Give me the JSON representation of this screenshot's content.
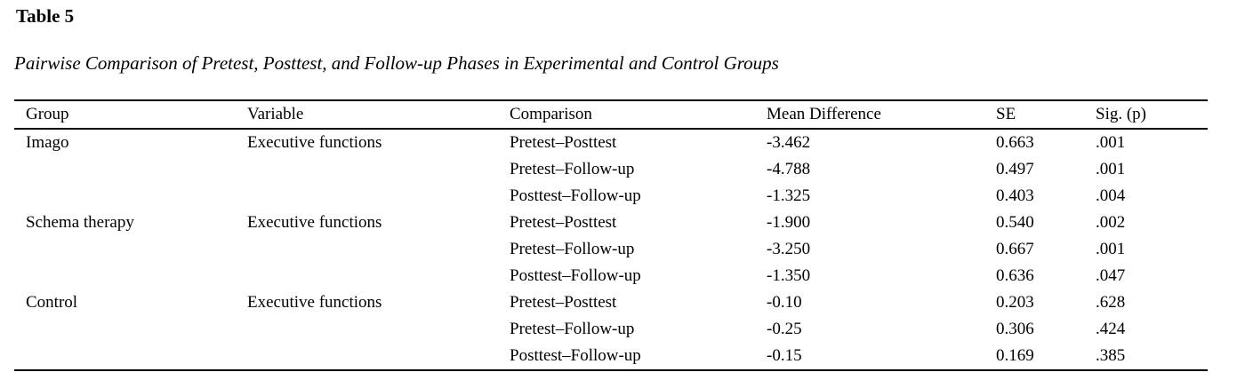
{
  "title": "Table 5",
  "caption": "Pairwise Comparison of Pretest, Posttest, and Follow-up Phases in Experimental and Control Groups",
  "table": {
    "columns": [
      "Group",
      "Variable",
      "Comparison",
      "Mean Difference",
      "SE",
      "Sig. (p)"
    ],
    "rows": [
      [
        "Imago",
        "Executive functions",
        "Pretest–Posttest",
        "-3.462",
        "0.663",
        ".001"
      ],
      [
        "",
        "",
        "Pretest–Follow-up",
        "-4.788",
        "0.497",
        ".001"
      ],
      [
        "",
        "",
        "Posttest–Follow-up",
        "-1.325",
        "0.403",
        ".004"
      ],
      [
        "Schema therapy",
        "Executive functions",
        "Pretest–Posttest",
        "-1.900",
        "0.540",
        ".002"
      ],
      [
        "",
        "",
        "Pretest–Follow-up",
        "-3.250",
        "0.667",
        ".001"
      ],
      [
        "",
        "",
        "Posttest–Follow-up",
        "-1.350",
        "0.636",
        ".047"
      ],
      [
        "Control",
        "Executive functions",
        "Pretest–Posttest",
        "-0.10",
        "0.203",
        ".628"
      ],
      [
        "",
        "",
        "Pretest–Follow-up",
        "-0.25",
        "0.306",
        ".424"
      ],
      [
        "",
        "",
        "Posttest–Follow-up",
        "-0.15",
        "0.169",
        ".385"
      ]
    ]
  },
  "chart_data": {
    "type": "table",
    "title": "Table 5",
    "subtitle": "Pairwise Comparison of Pretest, Posttest, and Follow-up Phases in Experimental and Control Groups",
    "columns": [
      "Group",
      "Variable",
      "Comparison",
      "Mean Difference",
      "SE",
      "Sig. (p)"
    ],
    "groups": [
      {
        "group": "Imago",
        "variable": "Executive functions",
        "comparisons": [
          {
            "comparison": "Pretest–Posttest",
            "mean_difference": -3.462,
            "se": 0.663,
            "sig_p": 0.001
          },
          {
            "comparison": "Pretest–Follow-up",
            "mean_difference": -4.788,
            "se": 0.497,
            "sig_p": 0.001
          },
          {
            "comparison": "Posttest–Follow-up",
            "mean_difference": -1.325,
            "se": 0.403,
            "sig_p": 0.004
          }
        ]
      },
      {
        "group": "Schema therapy",
        "variable": "Executive functions",
        "comparisons": [
          {
            "comparison": "Pretest–Posttest",
            "mean_difference": -1.9,
            "se": 0.54,
            "sig_p": 0.002
          },
          {
            "comparison": "Pretest–Follow-up",
            "mean_difference": -3.25,
            "se": 0.667,
            "sig_p": 0.001
          },
          {
            "comparison": "Posttest–Follow-up",
            "mean_difference": -1.35,
            "se": 0.636,
            "sig_p": 0.047
          }
        ]
      },
      {
        "group": "Control",
        "variable": "Executive functions",
        "comparisons": [
          {
            "comparison": "Pretest–Posttest",
            "mean_difference": -0.1,
            "se": 0.203,
            "sig_p": 0.628
          },
          {
            "comparison": "Pretest–Follow-up",
            "mean_difference": -0.25,
            "se": 0.306,
            "sig_p": 0.424
          },
          {
            "comparison": "Posttest–Follow-up",
            "mean_difference": -0.15,
            "se": 0.169,
            "sig_p": 0.385
          }
        ]
      }
    ],
    "colors": {
      "text": "#000000",
      "background": "#ffffff",
      "rule": "#000000"
    }
  }
}
